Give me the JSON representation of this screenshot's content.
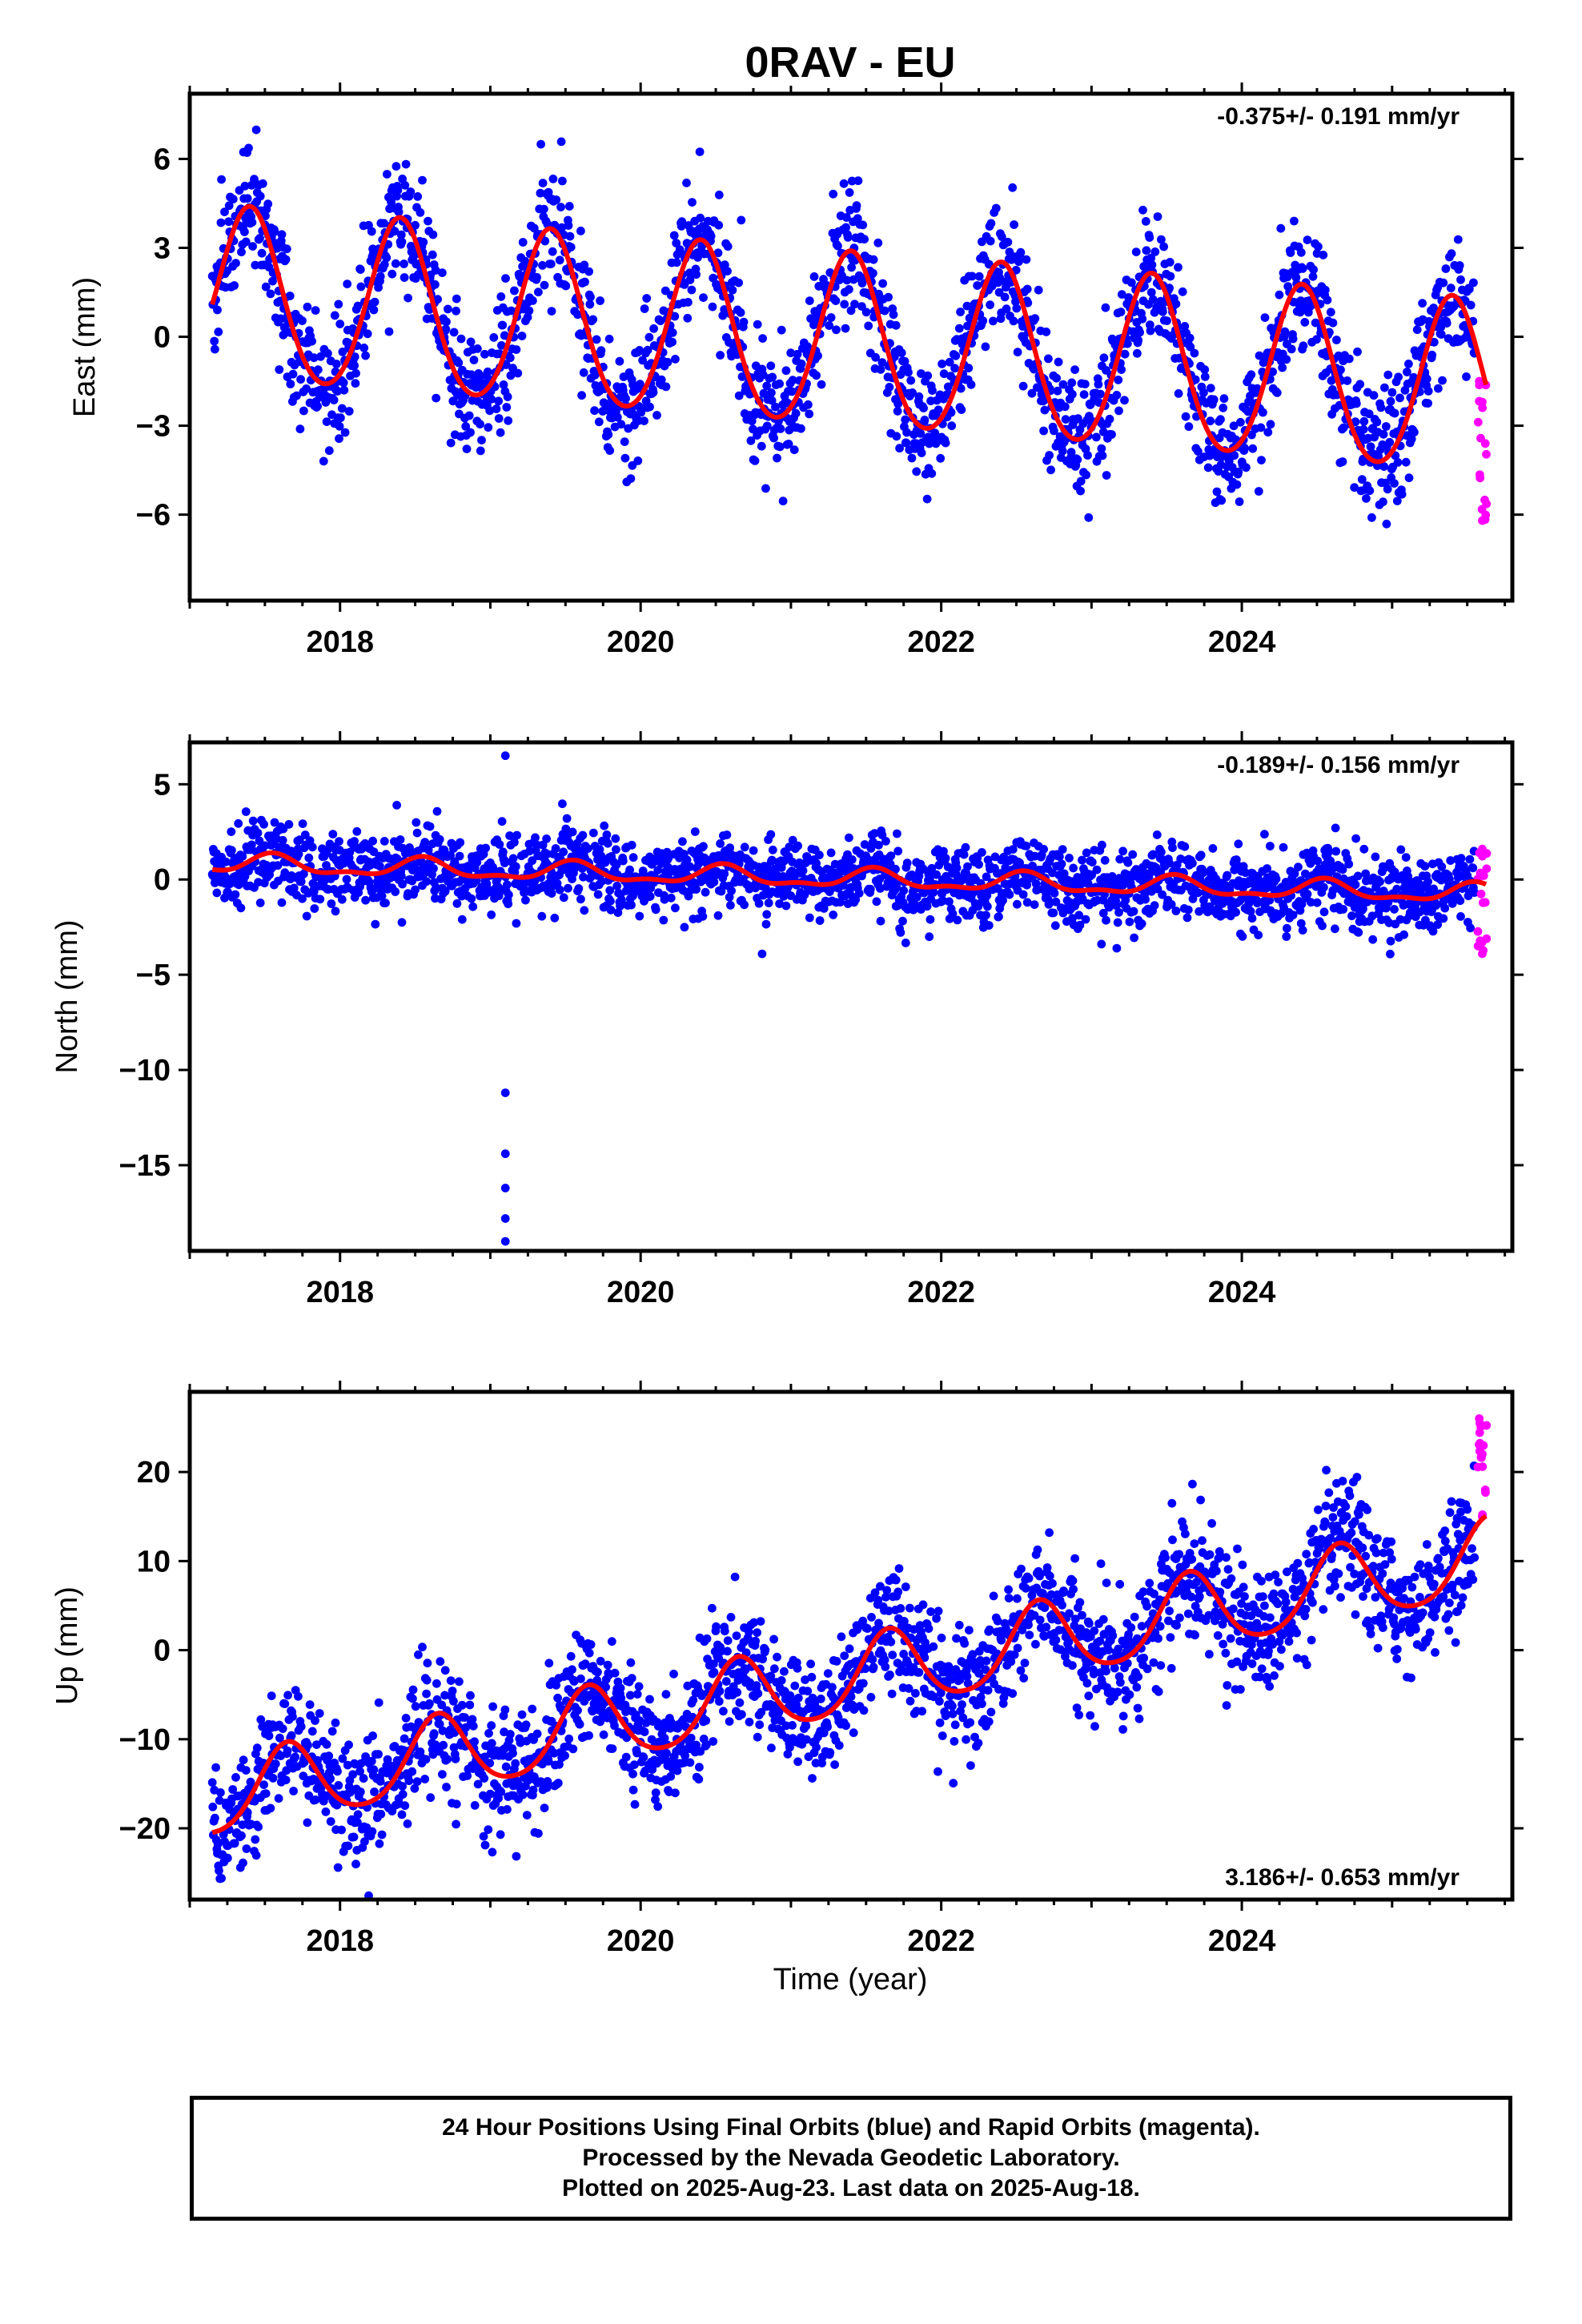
{
  "title": "0RAV - EU",
  "x_axis_label": "Time (year)",
  "footer": {
    "line1": "24 Hour Positions Using Final Orbits (blue) and Rapid Orbits (magenta).",
    "line2": "Processed by the Nevada Geodetic Laboratory.",
    "line3": "Plotted on 2025-Aug-23. Last data on 2025-Aug-18."
  },
  "colors": {
    "final_orbits": "#0000ff",
    "rapid_orbits": "#ff00ff",
    "model": "#ff0000",
    "frame": "#000000"
  },
  "chart_data": [
    {
      "type": "scatter",
      "panel": "east",
      "ylabel": "East (mm)",
      "annotation": "-0.375+/- 0.191 mm/yr",
      "annotation_position": "top-right",
      "xlim": [
        2017.0,
        2025.8
      ],
      "ylim": [
        -8.9,
        8.2
      ],
      "xticks": [
        2018,
        2020,
        2022,
        2024
      ],
      "yticks": [
        -6,
        -3,
        0,
        3,
        6
      ],
      "grid": false,
      "data_start": 2017.15,
      "final_end": 2025.55,
      "rapid_end": 2025.63,
      "trend_mm_per_yr": -0.375,
      "trend_sigma_mm_per_yr": 0.191,
      "model_offset_at_2021": -0.1,
      "annual_amplitude": 2.9,
      "annual_peak_phase": 0.4,
      "semiannual_amplitude": 0.25,
      "scatter_sigma": 1.05,
      "series": [
        {
          "color": "#0000ff",
          "values": [
            [
              2017.2,
              1.5
            ],
            [
              2017.45,
              4.4
            ],
            [
              2017.95,
              -1.2
            ],
            [
              2018.45,
              3.9
            ],
            [
              2018.95,
              -1.9
            ],
            [
              2019.45,
              3.6
            ],
            [
              2019.95,
              -2.4
            ],
            [
              2020.45,
              3.2
            ],
            [
              2020.95,
              -2.7
            ],
            [
              2021.45,
              2.8
            ],
            [
              2021.95,
              -3.1
            ],
            [
              2022.45,
              2.5
            ],
            [
              2022.95,
              -3.4
            ],
            [
              2023.45,
              2.1
            ],
            [
              2023.95,
              -3.8
            ],
            [
              2024.45,
              1.8
            ],
            [
              2024.95,
              -4.1
            ],
            [
              2025.45,
              1.4
            ]
          ]
        },
        {
          "color": "#ff00ff",
          "values": [
            [
              2025.58,
              -1.5
            ],
            [
              2025.6,
              -2.2
            ],
            [
              2025.62,
              -3.6
            ],
            [
              2025.6,
              -6.2
            ]
          ]
        }
      ]
    },
    {
      "type": "scatter",
      "panel": "north",
      "ylabel": "North (mm)",
      "annotation": "-0.189+/- 0.156 mm/yr",
      "annotation_position": "top-right",
      "xlim": [
        2017.0,
        2025.8
      ],
      "ylim": [
        -19.5,
        7.2
      ],
      "xticks": [
        2018,
        2020,
        2022,
        2024
      ],
      "yticks": [
        -15,
        -10,
        -5,
        0,
        5
      ],
      "grid": false,
      "data_start": 2017.15,
      "final_end": 2025.55,
      "rapid_end": 2025.63,
      "trend_mm_per_yr": -0.189,
      "trend_sigma_mm_per_yr": 0.156,
      "model_offset_at_2021": 0.1,
      "annual_amplitude": 0.45,
      "annual_peak_phase": 0.55,
      "semiannual_amplitude": 0.2,
      "scatter_sigma": 0.95,
      "outliers": [
        [
          2019.1,
          6.5
        ],
        [
          2019.1,
          -11.2
        ],
        [
          2019.1,
          -14.4
        ],
        [
          2019.1,
          -16.2
        ],
        [
          2019.1,
          -17.8
        ],
        [
          2019.1,
          -19.0
        ]
      ],
      "series": [
        {
          "color": "#0000ff",
          "values": [
            [
              2017.2,
              -0.3
            ],
            [
              2017.7,
              1.1
            ],
            [
              2018.2,
              -0.4
            ],
            [
              2018.9,
              0.9
            ],
            [
              2019.3,
              -0.6
            ],
            [
              2020.0,
              0.8
            ],
            [
              2020.3,
              -0.7
            ],
            [
              2020.8,
              0.5
            ],
            [
              2021.2,
              -1.0
            ],
            [
              2021.8,
              0.3
            ],
            [
              2022.2,
              -1.1
            ],
            [
              2022.8,
              0.2
            ],
            [
              2023.2,
              -1.3
            ],
            [
              2023.9,
              0.0
            ],
            [
              2024.2,
              -1.5
            ],
            [
              2024.9,
              -0.3
            ],
            [
              2025.3,
              -1.7
            ]
          ]
        },
        {
          "color": "#ff00ff",
          "values": [
            [
              2025.6,
              1.6
            ],
            [
              2025.61,
              0.2
            ],
            [
              2025.62,
              -1.2
            ],
            [
              2025.6,
              -3.9
            ]
          ]
        }
      ]
    },
    {
      "type": "scatter",
      "panel": "up",
      "ylabel": "Up (mm)",
      "annotation": "3.186+/- 0.653 mm/yr",
      "annotation_position": "bottom-right",
      "xlim": [
        2017.0,
        2025.8
      ],
      "ylim": [
        -28,
        29
      ],
      "xticks": [
        2018,
        2020,
        2022,
        2024
      ],
      "yticks": [
        -20,
        -10,
        0,
        10,
        20
      ],
      "grid": false,
      "data_start": 2017.15,
      "final_end": 2025.55,
      "rapid_end": 2025.63,
      "trend_mm_per_yr": 3.186,
      "trend_sigma_mm_per_yr": 0.653,
      "model_offset_at_2021": -4.5,
      "annual_amplitude": 4.3,
      "annual_peak_phase": 0.65,
      "semiannual_amplitude": 0.6,
      "scatter_sigma": 3.3,
      "series": [
        {
          "color": "#0000ff",
          "values": [
            [
              2017.2,
              -18
            ],
            [
              2017.6,
              -6.5
            ],
            [
              2018.2,
              -15
            ],
            [
              2018.65,
              -3
            ],
            [
              2019.2,
              -11.5
            ],
            [
              2019.65,
              0
            ],
            [
              2020.2,
              -8.5
            ],
            [
              2020.65,
              3
            ],
            [
              2021.2,
              -5
            ],
            [
              2021.65,
              6.5
            ],
            [
              2022.2,
              -2
            ],
            [
              2022.65,
              9.5
            ],
            [
              2023.2,
              1
            ],
            [
              2023.65,
              13
            ],
            [
              2024.2,
              4
            ],
            [
              2024.65,
              16
            ],
            [
              2025.2,
              8
            ],
            [
              2025.55,
              19
            ]
          ]
        },
        {
          "color": "#ff00ff",
          "values": [
            [
              2025.58,
              26
            ],
            [
              2025.6,
              22
            ],
            [
              2025.62,
              18
            ],
            [
              2025.6,
              15
            ]
          ]
        }
      ]
    }
  ]
}
